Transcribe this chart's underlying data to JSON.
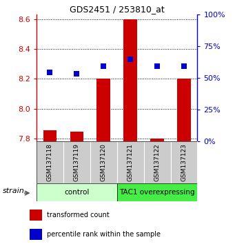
{
  "title": "GDS2451 / 253810_at",
  "samples": [
    "GSM137118",
    "GSM137119",
    "GSM137120",
    "GSM137121",
    "GSM137122",
    "GSM137123"
  ],
  "red_values": [
    7.855,
    7.845,
    8.2,
    8.6,
    7.8,
    8.2
  ],
  "blue_values": [
    8.245,
    8.235,
    8.285,
    8.33,
    8.285,
    8.285
  ],
  "ylim": [
    7.78,
    8.63
  ],
  "yticks": [
    7.8,
    8.0,
    8.2,
    8.4,
    8.6
  ],
  "right_yticks": [
    0,
    25,
    50,
    75,
    100
  ],
  "groups": [
    {
      "label": "control",
      "samples": [
        0,
        1,
        2
      ],
      "color": "#ccffcc"
    },
    {
      "label": "TAC1 overexpressing",
      "samples": [
        3,
        4,
        5
      ],
      "color": "#44ee44"
    }
  ],
  "bar_color": "#cc0000",
  "dot_color": "#0000cc",
  "bar_width": 0.5
}
